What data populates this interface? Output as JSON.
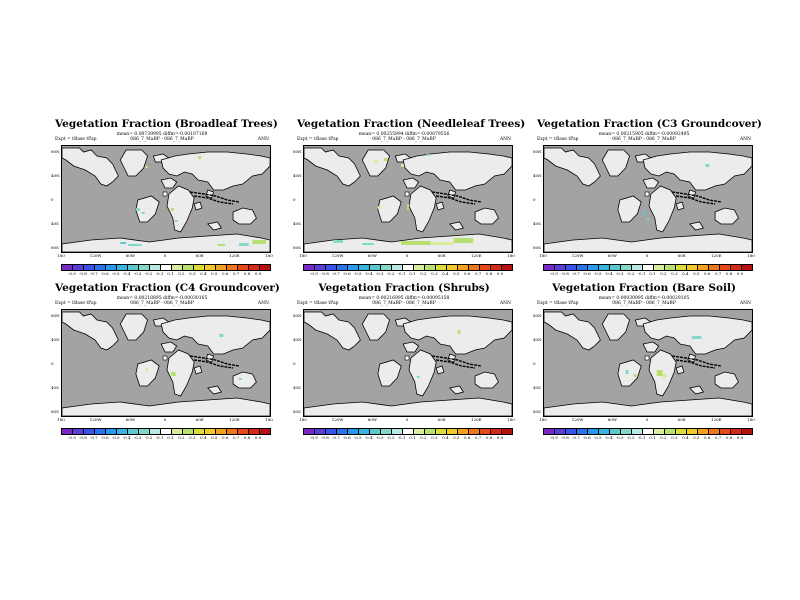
{
  "panels": [
    {
      "title": "Vegetation Fraction (Broadleaf Trees)",
      "stats": "mean= 0.00739995 diffm=-0.00107169",
      "expt_label": "Expt = tBase tPap",
      "run_label": "086_7_MaBP - 086_7_MaBP",
      "season": "ANN"
    },
    {
      "title": "Vegetation Fraction (Needleleaf Trees)",
      "stats": "mean= 0.00255994 diffm=-0.00079556",
      "expt_label": "Expt = tBase tPap",
      "run_label": "086_7_MaBP - 086_7_MaBP",
      "season": "ANN"
    },
    {
      "title": "Vegetation Fraction (C3 Groundcover)",
      "stats": "mean= 0.00215905 diffm=-0.00092495",
      "expt_label": "Expt = tBase tPap",
      "run_label": "086_7_MaBP - 086_7_MaBP",
      "season": "ANN"
    },
    {
      "title": "Vegetation Fraction (C4 Groundcover)",
      "stats": "mean= 0.00218895 diffm=-0.00030165",
      "expt_label": "Expt = tBase tPap",
      "run_label": "086_7_MaBP - 086_7_MaBP",
      "season": "ANN"
    },
    {
      "title": "Vegetation Fraction (Shrubs)",
      "stats": "mean= 0.00216995 diffm=-0.00095158",
      "expt_label": "Expt = tBase tPap",
      "run_label": "086_7_MaBP - 086_7_MaBP",
      "season": "ANN"
    },
    {
      "title": "Vegetation Fraction (Bare Soil)",
      "stats": "mean= 0.00030995 diffm=-0.00029105",
      "expt_label": "Expt = tBase tPap",
      "run_label": "086_7_MaBP - 086_7_MaBP",
      "season": "ANN"
    }
  ],
  "axes": {
    "lat_labels": [
      "80N",
      "40N",
      "0",
      "40S",
      "80S"
    ],
    "lon_labels": [
      "180",
      "120W",
      "60W",
      "0",
      "60E",
      "120E",
      "180"
    ]
  },
  "colorbar": {
    "labels": [
      "-0.9",
      "-0.8",
      "-0.7",
      "-0.6",
      "-0.5",
      "-0.4",
      "-0.3",
      "-0.2",
      "-0.1",
      "0.1",
      "0.2",
      "0.3",
      "0.4",
      "0.5",
      "0.6",
      "0.7",
      "0.8",
      "0.9"
    ],
    "colors": [
      "#7a28c8",
      "#5a3cd8",
      "#3a52e6",
      "#2a72f0",
      "#2a98f0",
      "#38b4e0",
      "#5cc8d0",
      "#84d8c8",
      "#b8e8e0",
      "#ffffff",
      "#d8ec9c",
      "#b8e070",
      "#dcdc38",
      "#f0c828",
      "#f4a020",
      "#f07818",
      "#e84818",
      "#d82818",
      "#b81010"
    ]
  },
  "colors": {
    "ocean": "#a3a3a3",
    "land": "#ececec",
    "coast": "#000000"
  }
}
